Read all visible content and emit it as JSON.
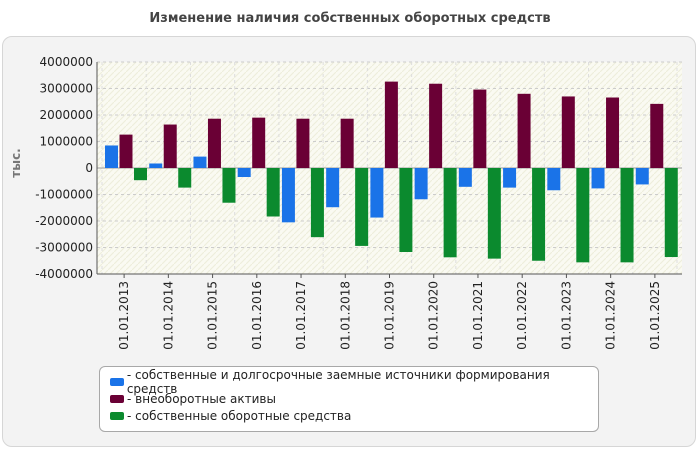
{
  "chart_data": {
    "type": "bar",
    "title": "Изменение наличия собственных оборотных средств",
    "xlabel": "",
    "ylabel": "тыс.",
    "ylim": [
      -4000000,
      4000000
    ],
    "yticks": [
      4000000,
      3000000,
      2000000,
      1000000,
      0,
      -1000000,
      -2000000,
      -3000000,
      -4000000
    ],
    "categories": [
      "01.01.2013",
      "01.01.2014",
      "01.01.2015",
      "01.01.2016",
      "01.01.2017",
      "01.01.2018",
      "01.01.2019",
      "01.01.2020",
      "01.01.2021",
      "01.01.2022",
      "01.01.2023",
      "01.01.2024",
      "01.01.2025"
    ],
    "series": [
      {
        "name": "- собственные и долгосрочные заемные источники формирования средств",
        "color": "#1a73e8",
        "values": [
          850000,
          170000,
          430000,
          -340000,
          -2050000,
          -1480000,
          -1870000,
          -1180000,
          -710000,
          -740000,
          -840000,
          -770000,
          -620000
        ]
      },
      {
        "name": "- внеоборотные активы",
        "color": "#6a0035",
        "values": [
          1260000,
          1640000,
          1860000,
          1900000,
          1860000,
          1860000,
          3260000,
          3180000,
          2960000,
          2800000,
          2700000,
          2660000,
          2420000
        ]
      },
      {
        "name": "- собственные оборотные средства",
        "color": "#0b8a2e",
        "values": [
          -460000,
          -740000,
          -1310000,
          -1830000,
          -2610000,
          -2940000,
          -3170000,
          -3370000,
          -3420000,
          -3500000,
          -3560000,
          -3560000,
          -3360000
        ]
      }
    ],
    "legend_position": "bottom"
  }
}
